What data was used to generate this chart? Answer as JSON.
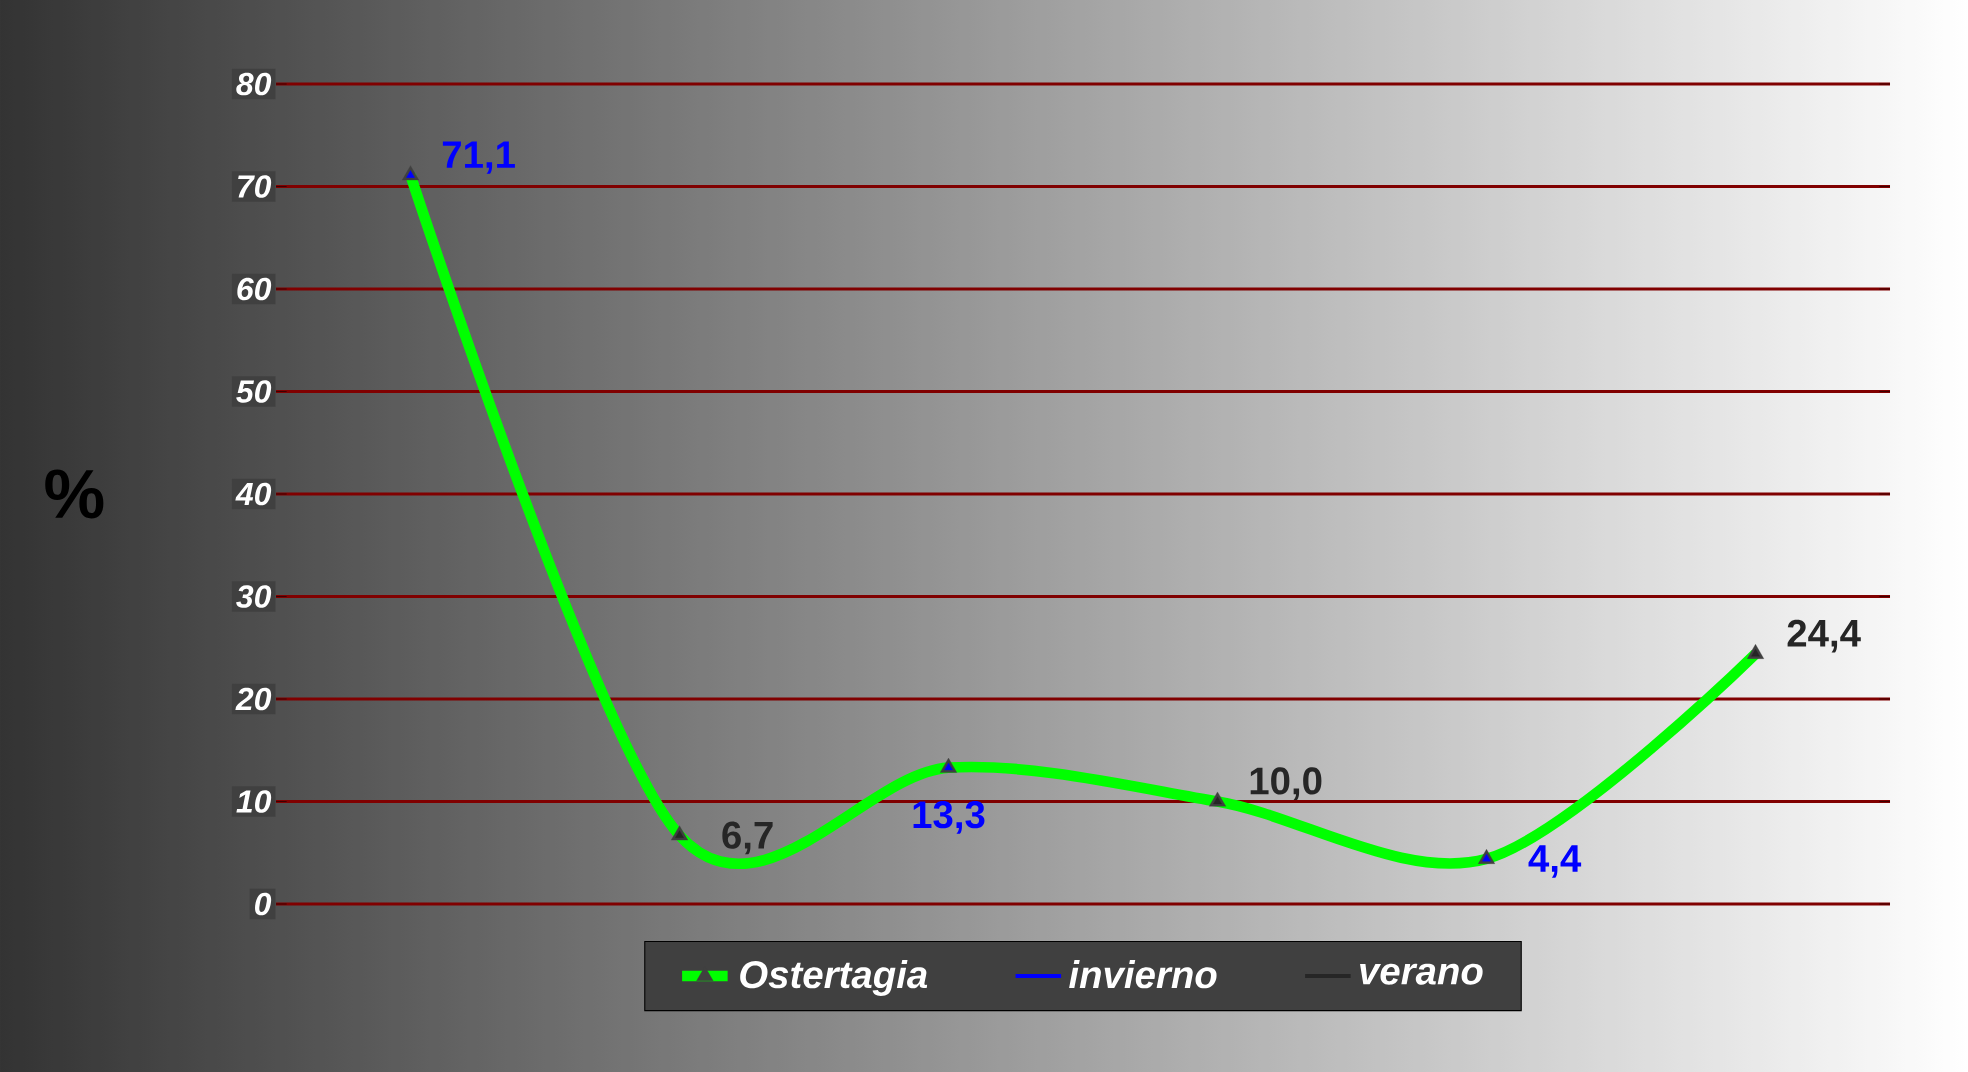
{
  "chart_data": {
    "type": "line",
    "ylabel": "%",
    "categories": [
      null,
      null,
      null,
      null,
      null,
      null
    ],
    "series": [
      {
        "name": "Ostertagia",
        "color": "#00ff00",
        "marker": "triangle",
        "values": [
          71.1,
          6.7,
          13.3,
          10.0,
          4.4,
          24.4
        ]
      },
      {
        "name": "invierno",
        "type": "scatter",
        "color": "#0000ff",
        "marker": "triangle",
        "values": [
          71.1,
          null,
          13.3,
          null,
          4.4,
          null
        ],
        "value_labels": [
          "71,1",
          null,
          "13,3",
          null,
          "4,4",
          null
        ]
      },
      {
        "name": "verano",
        "type": "scatter",
        "color": "#262626",
        "marker": "triangle",
        "values": [
          null,
          6.7,
          null,
          10.0,
          null,
          24.4
        ],
        "value_labels": [
          null,
          "6,7",
          null,
          "10,0",
          null,
          "24,4"
        ]
      }
    ],
    "ylim": [
      0,
      80
    ],
    "yticks": [
      0,
      10,
      20,
      30,
      40,
      50,
      60,
      70,
      80
    ],
    "grid": "y",
    "legend": "bottom"
  }
}
